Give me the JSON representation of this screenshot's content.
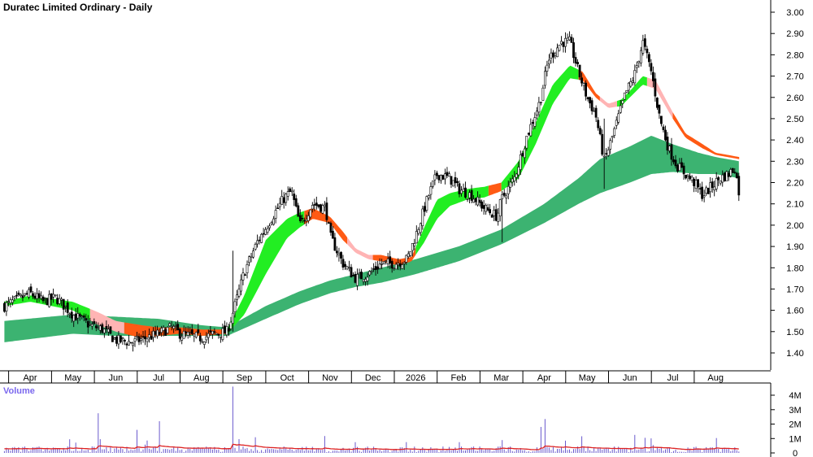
{
  "title": "Duratec Limited Ordinary - Daily",
  "volume_title": "Volume",
  "colors": {
    "band_slow": "#3cb371",
    "band_up": "#22ee22",
    "band_down_dark": "#ff5a14",
    "band_down_light": "#ffb4b4",
    "candle": "#000000",
    "volume_bar": "#6a5acd",
    "volume_avg": "#dd2222",
    "volume_title": "#7b68ee"
  },
  "chart_data": [
    {
      "type": "candlestick",
      "title": "Duratec Limited Ordinary - Daily",
      "y_ticks": [
        "3.00",
        "2.90",
        "2.80",
        "2.70",
        "2.60",
        "2.50",
        "2.40",
        "2.30",
        "2.20",
        "2.10",
        "2.00",
        "1.90",
        "1.80",
        "1.70",
        "1.60",
        "1.50",
        "1.40"
      ],
      "ylim": [
        1.34,
        3.02
      ],
      "x_labels": [
        "Apr",
        "May",
        "Jun",
        "Jul",
        "Aug",
        "Sep",
        "Oct",
        "Nov",
        "Dec",
        "2026",
        "Feb",
        "Mar",
        "Apr",
        "May",
        "Jun",
        "Jul",
        "Aug"
      ],
      "x_label_month_index": [
        0,
        1,
        2,
        3,
        4,
        5,
        6,
        7,
        8,
        9,
        10,
        11,
        12,
        13,
        14,
        15,
        16
      ],
      "grid": false,
      "close_anchors": [
        [
          -0.6,
          1.62
        ],
        [
          0,
          1.68
        ],
        [
          0.3,
          1.64
        ],
        [
          0.6,
          1.66
        ],
        [
          1.0,
          1.58
        ],
        [
          1.4,
          1.53
        ],
        [
          1.7,
          1.51
        ],
        [
          2.0,
          1.46
        ],
        [
          2.4,
          1.45
        ],
        [
          2.7,
          1.47
        ],
        [
          3.0,
          1.49
        ],
        [
          3.3,
          1.52
        ],
        [
          3.5,
          1.49
        ],
        [
          4.0,
          1.47
        ],
        [
          4.3,
          1.49
        ],
        [
          4.6,
          1.5
        ],
        [
          4.75,
          1.6
        ],
        [
          5.0,
          1.78
        ],
        [
          5.3,
          1.92
        ],
        [
          5.6,
          2.02
        ],
        [
          5.9,
          2.12
        ],
        [
          6.1,
          2.16
        ],
        [
          6.3,
          2.0
        ],
        [
          6.6,
          2.1
        ],
        [
          6.9,
          2.08
        ],
        [
          7.0,
          1.95
        ],
        [
          7.3,
          1.82
        ],
        [
          7.6,
          1.75
        ],
        [
          7.9,
          1.77
        ],
        [
          8.2,
          1.82
        ],
        [
          8.5,
          1.82
        ],
        [
          8.8,
          1.84
        ],
        [
          9.0,
          1.95
        ],
        [
          9.3,
          2.14
        ],
        [
          9.5,
          2.24
        ],
        [
          9.8,
          2.22
        ],
        [
          10.0,
          2.17
        ],
        [
          10.3,
          2.14
        ],
        [
          10.6,
          2.08
        ],
        [
          10.9,
          2.04
        ],
        [
          11.0,
          2.12
        ],
        [
          11.3,
          2.22
        ],
        [
          11.6,
          2.42
        ],
        [
          11.9,
          2.58
        ],
        [
          12.1,
          2.78
        ],
        [
          12.4,
          2.86
        ],
        [
          12.6,
          2.86
        ],
        [
          12.8,
          2.72
        ],
        [
          13.0,
          2.6
        ],
        [
          13.2,
          2.52
        ],
        [
          13.4,
          2.3
        ],
        [
          13.6,
          2.42
        ],
        [
          13.9,
          2.62
        ],
        [
          14.1,
          2.7
        ],
        [
          14.3,
          2.86
        ],
        [
          14.5,
          2.72
        ],
        [
          14.7,
          2.5
        ],
        [
          14.9,
          2.36
        ],
        [
          15.1,
          2.28
        ],
        [
          15.3,
          2.24
        ],
        [
          15.5,
          2.2
        ],
        [
          15.7,
          2.14
        ],
        [
          15.9,
          2.18
        ],
        [
          16.1,
          2.22
        ],
        [
          16.3,
          2.24
        ],
        [
          16.45,
          2.27
        ],
        [
          16.55,
          2.15
        ]
      ],
      "slow_band_anchors": [
        [
          -0.6,
          1.45,
          1.55
        ],
        [
          1.0,
          1.49,
          1.58
        ],
        [
          2.0,
          1.48,
          1.57
        ],
        [
          3.0,
          1.48,
          1.56
        ],
        [
          4.0,
          1.48,
          1.53
        ],
        [
          4.6,
          1.48,
          1.52
        ],
        [
          5.5,
          1.56,
          1.62
        ],
        [
          6.3,
          1.63,
          1.69
        ],
        [
          7.0,
          1.68,
          1.74
        ],
        [
          7.6,
          1.71,
          1.77
        ],
        [
          8.2,
          1.73,
          1.8
        ],
        [
          9.0,
          1.77,
          1.84
        ],
        [
          10.0,
          1.83,
          1.9
        ],
        [
          11.0,
          1.91,
          1.98
        ],
        [
          12.0,
          2.01,
          2.1
        ],
        [
          12.8,
          2.1,
          2.22
        ],
        [
          13.3,
          2.15,
          2.31
        ],
        [
          14.0,
          2.2,
          2.37
        ],
        [
          14.5,
          2.24,
          2.42
        ],
        [
          15.0,
          2.25,
          2.38
        ],
        [
          15.6,
          2.24,
          2.34
        ],
        [
          16.0,
          2.24,
          2.32
        ],
        [
          16.55,
          2.22,
          2.3
        ]
      ],
      "fast_band_anchors": [
        [
          -0.6,
          1.62,
          1.64
        ],
        [
          0,
          1.64,
          1.67
        ],
        [
          1.0,
          1.6,
          1.64
        ],
        [
          1.6,
          1.53,
          1.59
        ],
        [
          2.0,
          1.5,
          1.55
        ],
        [
          2.6,
          1.47,
          1.53
        ],
        [
          3.0,
          1.48,
          1.52
        ],
        [
          3.5,
          1.49,
          1.52
        ],
        [
          4.0,
          1.48,
          1.51
        ],
        [
          4.6,
          1.49,
          1.51
        ],
        [
          5.0,
          1.58,
          1.67
        ],
        [
          5.5,
          1.77,
          1.93
        ],
        [
          6.0,
          1.94,
          2.03
        ],
        [
          6.3,
          1.99,
          2.06
        ],
        [
          6.6,
          2.03,
          2.08
        ],
        [
          7.0,
          2.01,
          2.04
        ],
        [
          7.3,
          1.93,
          1.97
        ],
        [
          7.6,
          1.87,
          1.89
        ],
        [
          7.9,
          1.84,
          1.86
        ],
        [
          8.2,
          1.83,
          1.86
        ],
        [
          8.6,
          1.81,
          1.84
        ],
        [
          8.9,
          1.83,
          1.85
        ],
        [
          9.2,
          1.92,
          1.99
        ],
        [
          9.5,
          2.03,
          2.12
        ],
        [
          9.8,
          2.09,
          2.15
        ],
        [
          10.2,
          2.12,
          2.17
        ],
        [
          10.6,
          2.13,
          2.18
        ],
        [
          11.0,
          2.16,
          2.2
        ],
        [
          11.4,
          2.22,
          2.3
        ],
        [
          11.8,
          2.38,
          2.48
        ],
        [
          12.2,
          2.57,
          2.66
        ],
        [
          12.6,
          2.69,
          2.75
        ],
        [
          12.9,
          2.68,
          2.72
        ],
        [
          13.2,
          2.6,
          2.62
        ],
        [
          13.5,
          2.55,
          2.57
        ],
        [
          13.8,
          2.56,
          2.59
        ],
        [
          14.0,
          2.6,
          2.63
        ],
        [
          14.3,
          2.66,
          2.7
        ],
        [
          14.6,
          2.64,
          2.68
        ],
        [
          15.0,
          2.5,
          2.53
        ],
        [
          15.3,
          2.41,
          2.43
        ],
        [
          15.7,
          2.36,
          2.38
        ],
        [
          16.0,
          2.33,
          2.34
        ],
        [
          16.55,
          2.31,
          2.32
        ]
      ],
      "fast_band_colors": [
        [
          -0.6,
          1.4,
          "band_up"
        ],
        [
          1.4,
          2.2,
          "band_down_light"
        ],
        [
          2.2,
          4.6,
          "band_down_dark"
        ],
        [
          4.6,
          6.4,
          "band_up"
        ],
        [
          6.4,
          7.4,
          "band_down_dark"
        ],
        [
          7.4,
          8.0,
          "band_down_light"
        ],
        [
          8.0,
          9.0,
          "band_down_dark"
        ],
        [
          9.0,
          10.7,
          "band_up"
        ],
        [
          10.7,
          11.0,
          "band_down_dark"
        ],
        [
          11.0,
          12.8,
          "band_up"
        ],
        [
          12.8,
          13.3,
          "band_down_dark"
        ],
        [
          13.3,
          13.7,
          "band_down_light"
        ],
        [
          13.7,
          14.4,
          "band_up"
        ],
        [
          14.4,
          15.0,
          "band_down_light"
        ],
        [
          15.0,
          16.55,
          "band_down_dark"
        ]
      ],
      "spike_candles": [
        [
          4.75,
          1.88,
          1.5
        ],
        [
          13.4,
          2.5,
          2.17
        ],
        [
          11.0,
          2.16,
          1.92
        ]
      ]
    },
    {
      "type": "bar",
      "title": "Volume",
      "y_ticks": [
        "4M",
        "3M",
        "2M",
        "1M",
        "0"
      ],
      "ylim": [
        0,
        4.6
      ],
      "units": "millions",
      "typical_volume": 0.25,
      "average_level": 0.3,
      "spikes": [
        [
          1.6,
          2.75
        ],
        [
          3.0,
          2.2
        ],
        [
          4.75,
          4.6
        ],
        [
          2.5,
          1.6
        ],
        [
          12.0,
          2.35
        ],
        [
          11.9,
          1.8
        ],
        [
          14.1,
          1.25
        ],
        [
          8.8,
          0.75
        ],
        [
          12.5,
          0.85
        ],
        [
          10.0,
          0.75
        ]
      ]
    }
  ]
}
